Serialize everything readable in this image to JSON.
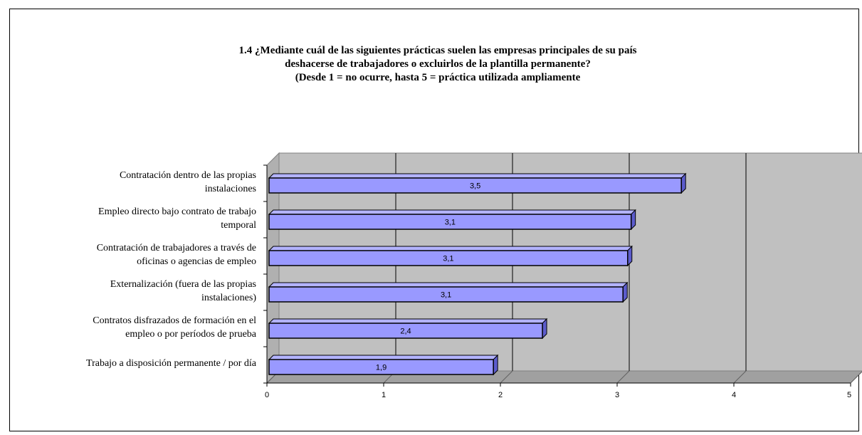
{
  "title_lines": [
    "1.4  ¿Mediante cuál de las siguientes prácticas suelen las empresas principales de su país",
    "deshacerse de trabajadores o excluirlos de la plantilla permanente?",
    "(Desde 1 = no ocurre, hasta 5 = práctica utilizada ampliamente"
  ],
  "chart_data": {
    "type": "bar",
    "orientation": "horizontal",
    "title": "1.4  ¿Mediante cuál de las siguientes prácticas suelen las empresas principales de su país deshacerse de trabajadores o excluirlos de la plantilla permanente? (Desde 1 = no ocurre, hasta 5 = práctica utilizada ampliamente",
    "categories": [
      [
        "Contratación dentro de las propias",
        "instalaciones"
      ],
      [
        "Empleo directo bajo contrato de trabajo",
        "temporal"
      ],
      [
        "Contratación de trabajadores a través de",
        "oficinas o agencias de empleo"
      ],
      [
        "Externalización (fuera de las propias",
        "instalaciones)"
      ],
      [
        "Contratos disfrazados de formación en el",
        "empleo o por períodos de prueba"
      ],
      [
        "Trabajo a disposición permanente / por día"
      ]
    ],
    "values": [
      3.55,
      3.12,
      3.09,
      3.05,
      2.36,
      1.94
    ],
    "data_labels": [
      "3,5",
      "3,1",
      "3,1",
      "3,1",
      "2,4",
      "1,9"
    ],
    "xlim": [
      0,
      5
    ],
    "xticks": [
      "0",
      "1",
      "2",
      "3",
      "4",
      "5"
    ],
    "grid": true,
    "colors": {
      "bar": "#9999ff",
      "bar_side": "#5c5ccc",
      "plot_back": "#c0c0c0",
      "plot_floor": "#a0a0a0",
      "grid": "#000000"
    }
  }
}
